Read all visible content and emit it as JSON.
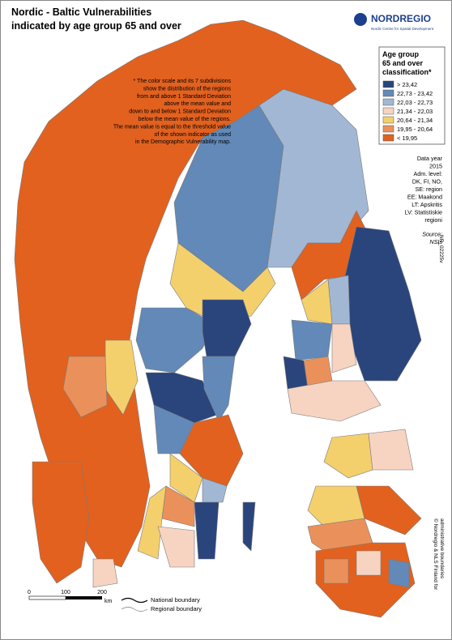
{
  "title": [
    "Nordic - Baltic Vulnerabilities",
    "indicated by age group 65 and over"
  ],
  "logo": {
    "name": "NORDREGIO",
    "tagline": "Nordic Centre for Spatial Development"
  },
  "note": [
    "* The color scale and its 7 subdivisions",
    "show the distribution of the regions",
    "from and above 1 Standard Deviation",
    "above the mean value and",
    "down to and below 1 Standard Deviation",
    "below the mean value of the regions.",
    "The mean value is equal to the threshold value",
    "of the shown indicator as used",
    "in the Demographic Vulnerability map."
  ],
  "legend": {
    "title": [
      "Age group",
      "65 and over",
      "classification*"
    ],
    "classes": [
      {
        "label": "> 23,42",
        "color": "#2a457c"
      },
      {
        "label": "22,73 - 23,42",
        "color": "#6289b8"
      },
      {
        "label": "22,03 - 22,73",
        "color": "#a2b7d3"
      },
      {
        "label": "21,34 - 22,03",
        "color": "#f7d4c2"
      },
      {
        "label": "20,64 - 21,34",
        "color": "#f4d06c"
      },
      {
        "label": "19,95 - 20,64",
        "color": "#ea915b"
      },
      {
        "label": "< 19,95",
        "color": "#e2611f"
      }
    ]
  },
  "info": [
    "Data year",
    "2015",
    "Adm. level:",
    "DK, FI, NO,",
    "SE: region",
    "EE: Maakond",
    "LT: Apskritis",
    "LV: Statistiskie",
    "regioni"
  ],
  "source": {
    "label": "Source:",
    "value": "NSIs"
  },
  "code": "NR_02225v",
  "scale": {
    "ticks": [
      "0",
      "100",
      "200"
    ],
    "unit": "km"
  },
  "boundaries": [
    "National boundary",
    "Regional boundary"
  ],
  "credits": [
    "© Nordregio & NLS Finland for",
    "administrative boundaries"
  ]
}
